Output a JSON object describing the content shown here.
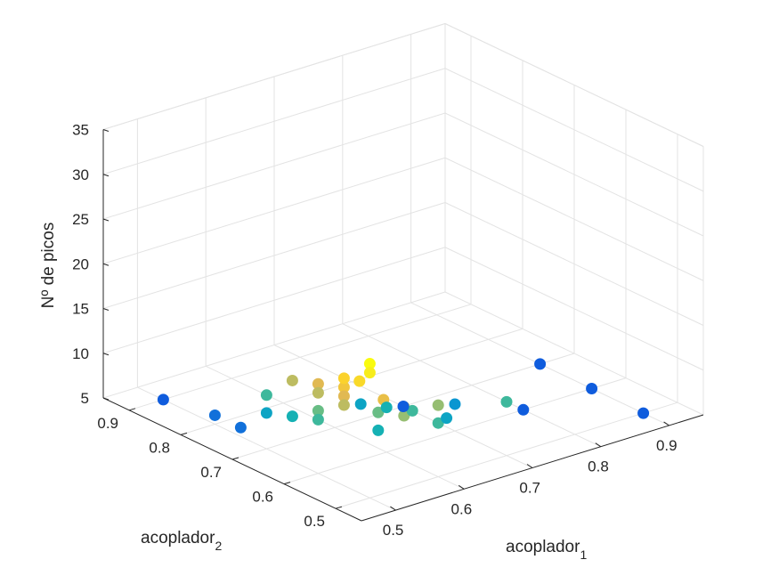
{
  "chart_data": {
    "type": "scatter3d",
    "x_axis": {
      "label_main": "acoplador",
      "label_sub": "1",
      "ticks": [
        "0.5",
        "0.6",
        "0.7",
        "0.8",
        "0.9"
      ]
    },
    "y_axis": {
      "label_main": "acoplador",
      "label_sub": "2",
      "ticks": [
        "0.5",
        "0.6",
        "0.7",
        "0.8",
        "0.9"
      ]
    },
    "z_axis": {
      "label": "Nº de picos",
      "ticks": [
        "5",
        "10",
        "15",
        "20",
        "25",
        "30",
        "35"
      ]
    },
    "xlim": [
      0.45,
      0.95
    ],
    "ylim": [
      0.45,
      0.95
    ],
    "zlim": [
      5,
      35
    ],
    "grid": true,
    "colormap": "parula",
    "points": [
      {
        "x": 0.5,
        "y": 0.5,
        "z": 20
      },
      {
        "x": 0.5,
        "y": 0.5,
        "z": 19
      },
      {
        "x": 0.5,
        "y": 0.52,
        "z": 17.5
      },
      {
        "x": 0.5,
        "y": 0.55,
        "z": 16
      },
      {
        "x": 0.5,
        "y": 0.55,
        "z": 17
      },
      {
        "x": 0.52,
        "y": 0.5,
        "z": 15.5
      },
      {
        "x": 0.5,
        "y": 0.55,
        "z": 15
      },
      {
        "x": 0.5,
        "y": 0.6,
        "z": 15
      },
      {
        "x": 0.5,
        "y": 0.6,
        "z": 14
      },
      {
        "x": 0.5,
        "y": 0.65,
        "z": 14
      },
      {
        "x": 0.5,
        "y": 0.55,
        "z": 14
      },
      {
        "x": 0.55,
        "y": 0.5,
        "z": 14
      },
      {
        "x": 0.55,
        "y": 0.5,
        "z": 13
      },
      {
        "x": 0.5,
        "y": 0.6,
        "z": 12
      },
      {
        "x": 0.5,
        "y": 0.6,
        "z": 11
      },
      {
        "x": 0.6,
        "y": 0.5,
        "z": 13
      },
      {
        "x": 0.5,
        "y": 0.7,
        "z": 11
      },
      {
        "x": 0.5,
        "y": 0.65,
        "z": 10
      },
      {
        "x": 0.55,
        "y": 0.55,
        "z": 12
      },
      {
        "x": 0.6,
        "y": 0.5,
        "z": 11
      },
      {
        "x": 0.6,
        "y": 0.55,
        "z": 11
      },
      {
        "x": 0.5,
        "y": 0.7,
        "z": 9
      },
      {
        "x": 0.6,
        "y": 0.6,
        "z": 10
      },
      {
        "x": 0.55,
        "y": 0.55,
        "z": 10
      },
      {
        "x": 0.7,
        "y": 0.5,
        "z": 11
      },
      {
        "x": 0.6,
        "y": 0.65,
        "z": 9
      },
      {
        "x": 0.65,
        "y": 0.55,
        "z": 9
      },
      {
        "x": 0.5,
        "y": 0.75,
        "z": 6
      },
      {
        "x": 0.5,
        "y": 0.8,
        "z": 6
      },
      {
        "x": 0.5,
        "y": 0.9,
        "z": 5
      },
      {
        "x": 0.7,
        "y": 0.6,
        "z": 8
      },
      {
        "x": 0.7,
        "y": 0.7,
        "z": 5
      },
      {
        "x": 0.9,
        "y": 0.5,
        "z": 5
      },
      {
        "x": 0.8,
        "y": 0.6,
        "z": 5
      },
      {
        "x": 0.9,
        "y": 0.6,
        "z": 5
      },
      {
        "x": 0.9,
        "y": 0.7,
        "z": 5
      }
    ]
  }
}
